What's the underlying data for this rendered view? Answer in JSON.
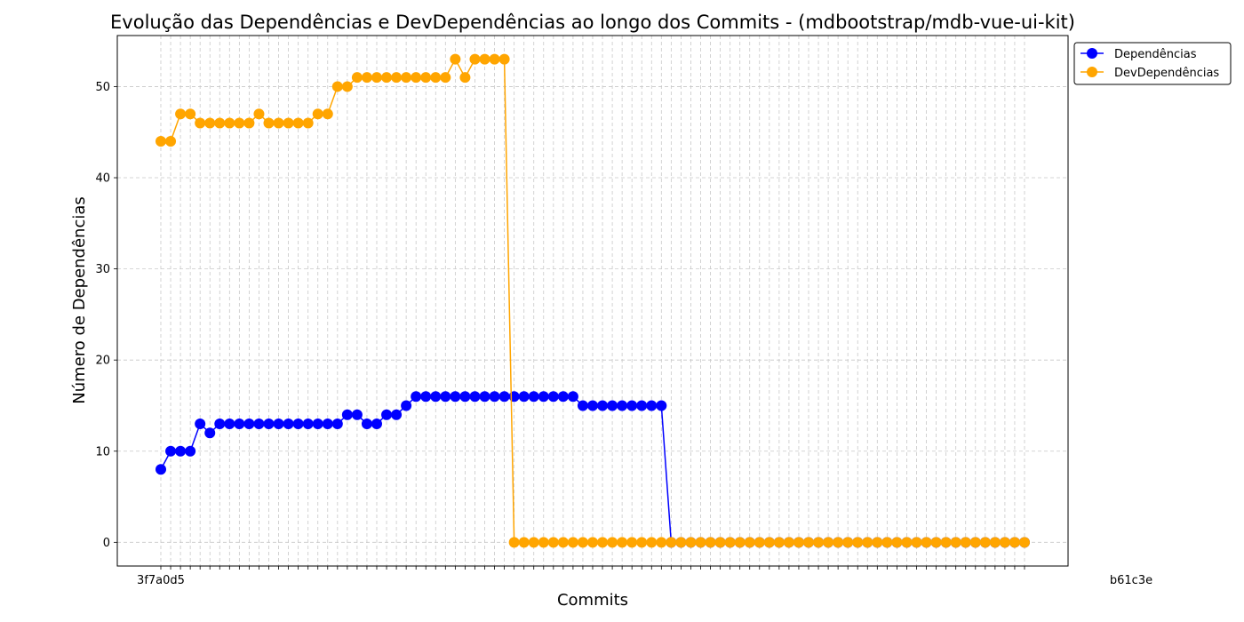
{
  "chart_data": {
    "type": "line",
    "title": "Evolução das Dependências e DevDependências ao longo dos Commits - (mdbootstrap/mdb-vue-ui-kit)",
    "xlabel": "Commits",
    "ylabel": "Número de Dependências",
    "ylim": [
      -2.6,
      55.6
    ],
    "yticks": [
      0,
      10,
      20,
      30,
      40,
      50
    ],
    "grid": true,
    "legend_position": "outside-top-right",
    "x_first_label": "3f7a0d5",
    "x_last_label": "b61c3e",
    "num_commits": 89,
    "series": [
      {
        "name": "Dependências",
        "color": "#0000ff",
        "values": [
          8,
          10,
          10,
          10,
          13,
          12,
          13,
          13,
          13,
          13,
          13,
          13,
          13,
          13,
          13,
          13,
          13,
          13,
          13,
          14,
          14,
          13,
          13,
          14,
          14,
          15,
          16,
          16,
          16,
          16,
          16,
          16,
          16,
          16,
          16,
          16,
          16,
          16,
          16,
          16,
          16,
          16,
          16,
          15,
          15,
          15,
          15,
          15,
          15,
          15,
          15,
          15,
          0,
          0,
          0,
          0,
          0,
          0,
          0,
          0,
          0,
          0,
          0,
          0,
          0,
          0,
          0,
          0,
          0,
          0,
          0,
          0,
          0,
          0,
          0,
          0,
          0,
          0,
          0,
          0,
          0,
          0,
          0,
          0,
          0,
          0,
          0,
          0,
          0
        ]
      },
      {
        "name": "DevDependências",
        "color": "#ffa500",
        "values": [
          44,
          44,
          47,
          47,
          46,
          46,
          46,
          46,
          46,
          46,
          47,
          46,
          46,
          46,
          46,
          46,
          47,
          47,
          50,
          50,
          51,
          51,
          51,
          51,
          51,
          51,
          51,
          51,
          51,
          51,
          53,
          51,
          53,
          53,
          53,
          53,
          0,
          0,
          0,
          0,
          0,
          0,
          0,
          0,
          0,
          0,
          0,
          0,
          0,
          0,
          0,
          0,
          0,
          0,
          0,
          0,
          0,
          0,
          0,
          0,
          0,
          0,
          0,
          0,
          0,
          0,
          0,
          0,
          0,
          0,
          0,
          0,
          0,
          0,
          0,
          0,
          0,
          0,
          0,
          0,
          0,
          0,
          0,
          0,
          0,
          0,
          0,
          0,
          0
        ]
      }
    ]
  }
}
